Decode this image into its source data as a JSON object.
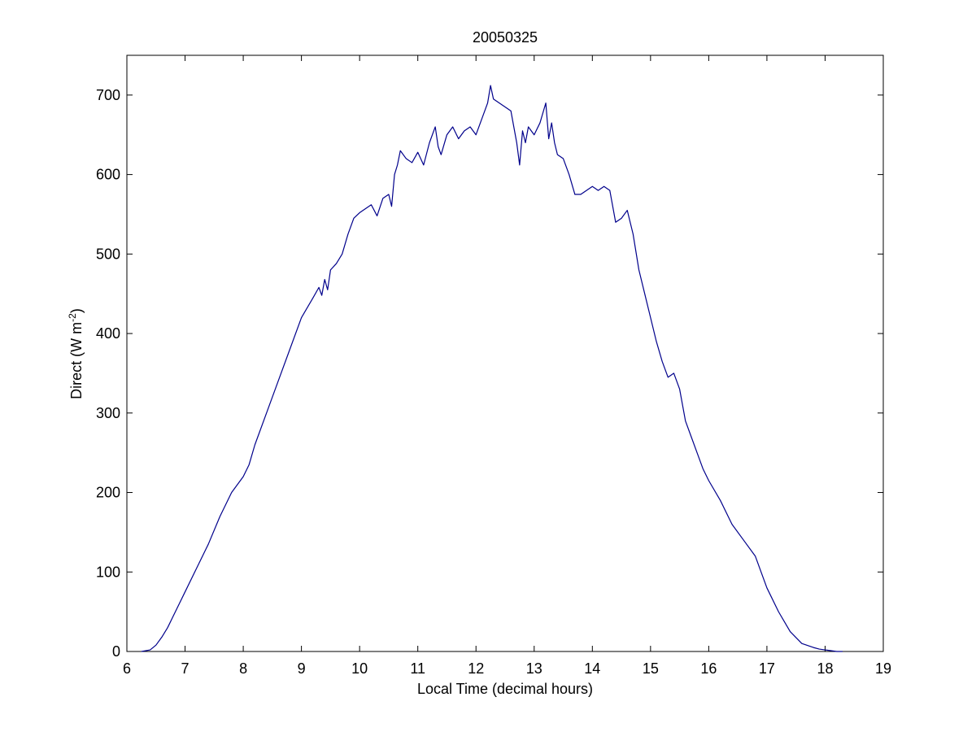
{
  "chart_data": {
    "type": "line",
    "title": "20050325",
    "xlabel": "Local Time (decimal hours)",
    "ylabel": {
      "prefix": "Direct (W m",
      "superscript": "-2",
      "suffix": ")"
    },
    "xlim": [
      6,
      19
    ],
    "ylim": [
      0,
      750
    ],
    "x_ticks": [
      6,
      7,
      8,
      9,
      10,
      11,
      12,
      13,
      14,
      15,
      16,
      17,
      18,
      19
    ],
    "y_ticks": [
      0,
      100,
      200,
      300,
      400,
      500,
      600,
      700
    ],
    "grid": false,
    "line_color": "#00008B",
    "series": [
      {
        "x": [
          6.25,
          6.4,
          6.5,
          6.6,
          6.7,
          6.8,
          6.9,
          7.0,
          7.2,
          7.4,
          7.6,
          7.8,
          8.0,
          8.1,
          8.2,
          8.4,
          8.6,
          8.8,
          9.0,
          9.2,
          9.3,
          9.35,
          9.4,
          9.45,
          9.5,
          9.6,
          9.7,
          9.8,
          9.9,
          10.0,
          10.2,
          10.3,
          10.4,
          10.5,
          10.55,
          10.6,
          10.65,
          10.7,
          10.8,
          10.9,
          11.0,
          11.1,
          11.2,
          11.3,
          11.35,
          11.4,
          11.5,
          11.6,
          11.7,
          11.8,
          11.9,
          12.0,
          12.1,
          12.2,
          12.25,
          12.3,
          12.4,
          12.5,
          12.6,
          12.7,
          12.75,
          12.8,
          12.85,
          12.9,
          13.0,
          13.1,
          13.2,
          13.25,
          13.3,
          13.35,
          13.4,
          13.5,
          13.6,
          13.7,
          13.8,
          13.9,
          14.0,
          14.1,
          14.2,
          14.3,
          14.4,
          14.5,
          14.6,
          14.7,
          14.8,
          14.9,
          15.0,
          15.1,
          15.2,
          15.3,
          15.4,
          15.5,
          15.6,
          15.7,
          15.8,
          15.9,
          16.0,
          16.2,
          16.4,
          16.6,
          16.8,
          16.9,
          17.0,
          17.2,
          17.4,
          17.6,
          17.8,
          17.9,
          18.0,
          18.1,
          18.2,
          18.3
        ],
        "y": [
          0,
          2,
          8,
          18,
          30,
          45,
          60,
          75,
          105,
          135,
          170,
          200,
          220,
          235,
          260,
          300,
          340,
          380,
          420,
          445,
          458,
          448,
          468,
          455,
          480,
          488,
          500,
          525,
          545,
          552,
          562,
          548,
          570,
          575,
          560,
          600,
          612,
          630,
          620,
          615,
          628,
          612,
          640,
          660,
          635,
          625,
          650,
          660,
          645,
          655,
          660,
          650,
          670,
          690,
          712,
          695,
          690,
          685,
          680,
          640,
          612,
          655,
          640,
          660,
          650,
          665,
          690,
          645,
          665,
          640,
          625,
          620,
          600,
          575,
          575,
          580,
          585,
          580,
          585,
          580,
          540,
          545,
          555,
          525,
          480,
          450,
          420,
          390,
          365,
          345,
          350,
          330,
          290,
          270,
          250,
          230,
          215,
          190,
          160,
          140,
          120,
          100,
          80,
          50,
          25,
          10,
          5,
          3,
          2,
          1,
          0,
          0
        ]
      }
    ]
  }
}
